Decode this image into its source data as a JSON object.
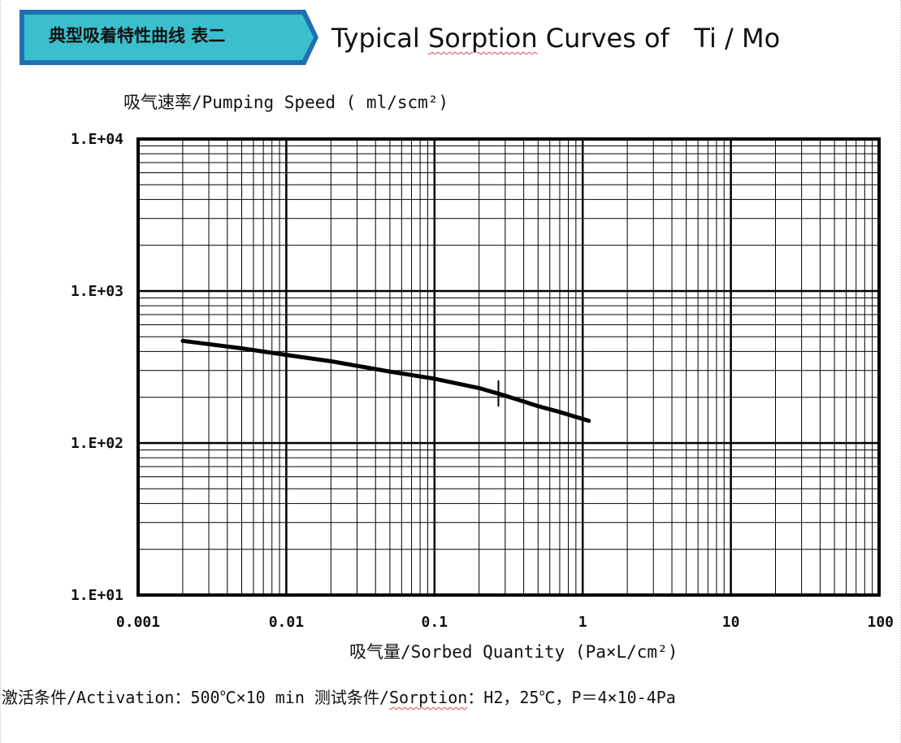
{
  "header": {
    "badge_text": "典型吸着特性曲线 表二",
    "badge_color": "#3bbfcc",
    "badge_border_color": "#1f6fb2",
    "title_prefix": "Typical ",
    "title_wavy": "Sorption",
    "title_suffix": " Curves of   Ti / Mo"
  },
  "chart_data": {
    "type": "line",
    "x_scale": "log",
    "y_scale": "log",
    "xlim": [
      0.001,
      100
    ],
    "ylim": [
      10,
      10000
    ],
    "grid": true,
    "ylabel": "吸气速率/Pumping Speed ( ml/scm²)",
    "xlabel": "吸气量/Sorbed Quantity (Pa×L/cm²)",
    "x_tick_labels": [
      "0.001",
      "0.01",
      "0.1",
      "1",
      "10",
      "100"
    ],
    "y_tick_labels": [
      "1.E+01",
      "1.E+02",
      "1.E+03",
      "1.E+04"
    ],
    "series": [
      {
        "x": [
          0.002,
          0.005,
          0.01,
          0.02,
          0.05,
          0.1,
          0.2,
          0.3,
          0.5,
          0.7,
          1.1
        ],
        "y": [
          470,
          420,
          380,
          345,
          295,
          265,
          230,
          205,
          175,
          160,
          140
        ]
      }
    ],
    "annotations": [
      {
        "type": "marker",
        "x": 0.27,
        "y": 212
      }
    ]
  },
  "conditions": {
    "activation": "激活条件/Activation：500℃×10 min ",
    "sorption_prefix": "测试条件/",
    "sorption_wavy": "Sorption",
    "sorption_suffix": "：H2，25℃，P＝4×10-4Pa"
  }
}
